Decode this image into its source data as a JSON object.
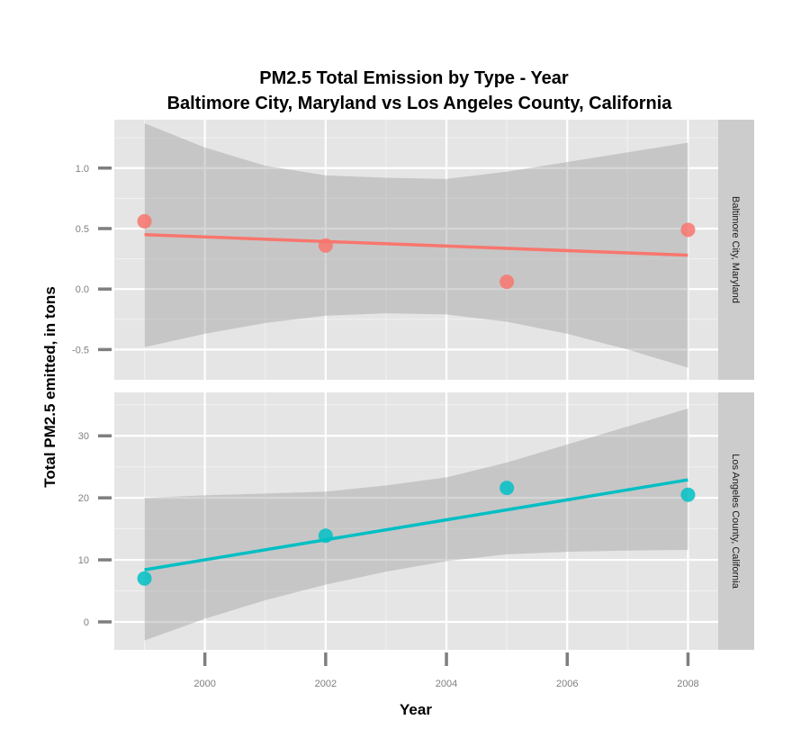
{
  "chart_data": {
    "type": "scatter",
    "title_line1": "PM2.5 Total Emission by Type - Year",
    "title_line2": "Baltimore City, Maryland vs Los Angeles County, California",
    "xlabel": "Year",
    "ylabel": "Total PM2.5 emitted, in tons",
    "x_ticks": [
      "2000",
      "2002",
      "2004",
      "2006",
      "2008"
    ],
    "xlim": [
      1998.5,
      2008.5
    ],
    "grid": true,
    "legend": "none",
    "panels": [
      {
        "strip": "Baltimore City, Maryland",
        "color": "#f8766d",
        "ylim": [
          -0.75,
          1.4
        ],
        "y_ticks": [
          "1.0",
          "0.5",
          "0.0",
          "-0.5"
        ],
        "points": [
          {
            "x": 1999,
            "y": 0.56
          },
          {
            "x": 2002,
            "y": 0.36
          },
          {
            "x": 2005,
            "y": 0.06
          },
          {
            "x": 2008,
            "y": 0.49
          }
        ],
        "fit": {
          "x": [
            1999,
            2008
          ],
          "y": [
            0.45,
            0.28
          ]
        },
        "ci": {
          "x": [
            1999,
            2000,
            2001,
            2002,
            2003,
            2004,
            2005,
            2006,
            2007,
            2008
          ],
          "upper": [
            1.37,
            1.17,
            1.02,
            0.94,
            0.92,
            0.91,
            0.97,
            1.05,
            1.13,
            1.21
          ],
          "lower": [
            -0.48,
            -0.37,
            -0.28,
            -0.22,
            -0.2,
            -0.21,
            -0.27,
            -0.37,
            -0.5,
            -0.65
          ]
        }
      },
      {
        "strip": "Los Angeles County, California",
        "color": "#00bfc4",
        "ylim": [
          -4.5,
          37
        ],
        "y_ticks": [
          "30",
          "20",
          "10",
          "0"
        ],
        "points": [
          {
            "x": 1999,
            "y": 7.0
          },
          {
            "x": 2002,
            "y": 13.9
          },
          {
            "x": 2005,
            "y": 21.6
          },
          {
            "x": 2008,
            "y": 20.5
          }
        ],
        "fit": {
          "x": [
            1999,
            2008
          ],
          "y": [
            8.4,
            22.9
          ]
        },
        "ci": {
          "x": [
            1999,
            2000,
            2001,
            2002,
            2003,
            2004,
            2005,
            2006,
            2007,
            2008
          ],
          "upper": [
            20.0,
            20.4,
            20.7,
            21.0,
            22.0,
            23.3,
            25.7,
            28.6,
            31.5,
            34.4
          ],
          "lower": [
            -3.0,
            0.5,
            3.5,
            6.0,
            8.1,
            9.8,
            10.9,
            11.3,
            11.5,
            11.6
          ]
        }
      }
    ]
  }
}
